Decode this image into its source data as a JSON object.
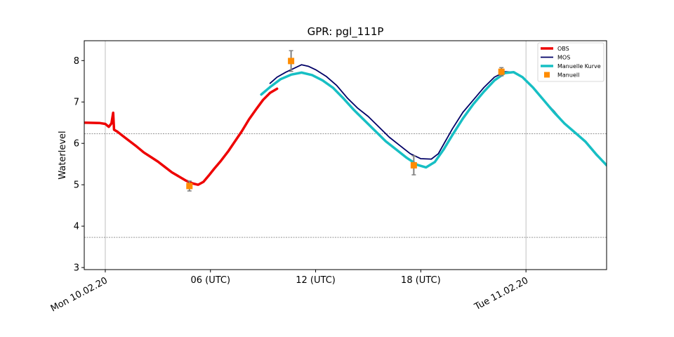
{
  "chart_data": {
    "type": "line",
    "title": "GPR: pgl_111P",
    "xlabel": "",
    "ylabel": "Waterlevel",
    "x_unit": "hours since 10.02.20 00:00 UTC",
    "xlim": [
      -1.2,
      28.6
    ],
    "ylim": [
      2.95,
      8.48
    ],
    "y_ticks": [
      3,
      4,
      5,
      6,
      7,
      8
    ],
    "x_ticks": [
      {
        "x": 0,
        "label": "Mon 10.02.20",
        "rotated": true,
        "gridline": true
      },
      {
        "x": 6,
        "label": "06 (UTC)",
        "rotated": false,
        "gridline": false
      },
      {
        "x": 12,
        "label": "12 (UTC)",
        "rotated": false,
        "gridline": false
      },
      {
        "x": 18,
        "label": "18 (UTC)",
        "rotated": false,
        "gridline": false
      },
      {
        "x": 24,
        "label": "Tue 11.02.20",
        "rotated": true,
        "gridline": true
      }
    ],
    "horizontal_reference_lines": [
      6.23,
      3.73
    ],
    "legend_position": "upper right",
    "colors": {
      "obs": "#ee0000",
      "mos": "#000066",
      "manual_curve": "#17bfc4",
      "manual_points": "#ff8c00",
      "error_bars": "#808080",
      "grid": "#b0b0b0"
    },
    "series": [
      {
        "name": "OBS",
        "style": "line-thick",
        "color": "#ee0000",
        "points": [
          [
            -1.2,
            6.5
          ],
          [
            -0.3,
            6.49
          ],
          [
            0.0,
            6.47
          ],
          [
            0.2,
            6.4
          ],
          [
            0.35,
            6.48
          ],
          [
            0.45,
            6.74
          ],
          [
            0.5,
            6.33
          ],
          [
            0.7,
            6.28
          ],
          [
            1.0,
            6.18
          ],
          [
            1.4,
            6.05
          ],
          [
            1.8,
            5.92
          ],
          [
            2.2,
            5.78
          ],
          [
            2.6,
            5.67
          ],
          [
            3.0,
            5.56
          ],
          [
            3.4,
            5.43
          ],
          [
            3.8,
            5.3
          ],
          [
            4.2,
            5.2
          ],
          [
            4.6,
            5.1
          ],
          [
            5.0,
            5.03
          ],
          [
            5.3,
            5.0
          ],
          [
            5.6,
            5.07
          ],
          [
            5.9,
            5.22
          ],
          [
            6.2,
            5.38
          ],
          [
            6.6,
            5.58
          ],
          [
            7.0,
            5.8
          ],
          [
            7.4,
            6.05
          ],
          [
            7.8,
            6.3
          ],
          [
            8.2,
            6.58
          ],
          [
            8.6,
            6.82
          ],
          [
            9.0,
            7.05
          ],
          [
            9.4,
            7.22
          ],
          [
            9.8,
            7.32
          ]
        ]
      },
      {
        "name": "MOS",
        "style": "line",
        "color": "#000066",
        "points": [
          [
            9.4,
            7.45
          ],
          [
            9.8,
            7.6
          ],
          [
            10.3,
            7.72
          ],
          [
            10.8,
            7.82
          ],
          [
            11.2,
            7.9
          ],
          [
            11.6,
            7.86
          ],
          [
            12.0,
            7.78
          ],
          [
            12.6,
            7.62
          ],
          [
            13.2,
            7.4
          ],
          [
            13.8,
            7.1
          ],
          [
            14.4,
            6.85
          ],
          [
            15.0,
            6.65
          ],
          [
            15.6,
            6.4
          ],
          [
            16.2,
            6.15
          ],
          [
            16.8,
            5.95
          ],
          [
            17.4,
            5.75
          ],
          [
            18.0,
            5.63
          ],
          [
            18.6,
            5.62
          ],
          [
            19.0,
            5.75
          ],
          [
            19.4,
            6.05
          ],
          [
            19.8,
            6.35
          ],
          [
            20.4,
            6.75
          ],
          [
            21.0,
            7.05
          ],
          [
            21.6,
            7.35
          ],
          [
            22.2,
            7.6
          ],
          [
            22.8,
            7.73
          ],
          [
            23.3,
            7.72
          ],
          [
            23.8,
            7.6
          ],
          [
            24.4,
            7.35
          ],
          [
            25.0,
            7.05
          ],
          [
            25.6,
            6.78
          ],
          [
            26.2,
            6.48
          ],
          [
            26.8,
            6.25
          ],
          [
            27.4,
            6.02
          ],
          [
            28.0,
            5.72
          ],
          [
            28.6,
            5.48
          ]
        ]
      },
      {
        "name": "Manuelle Kurve",
        "style": "line-thick",
        "color": "#17bfc4",
        "points": [
          [
            8.9,
            7.18
          ],
          [
            9.4,
            7.36
          ],
          [
            10.0,
            7.55
          ],
          [
            10.6,
            7.66
          ],
          [
            11.2,
            7.71
          ],
          [
            11.8,
            7.65
          ],
          [
            12.4,
            7.52
          ],
          [
            13.0,
            7.34
          ],
          [
            13.6,
            7.08
          ],
          [
            14.2,
            6.8
          ],
          [
            14.8,
            6.55
          ],
          [
            15.4,
            6.3
          ],
          [
            16.0,
            6.05
          ],
          [
            16.6,
            5.85
          ],
          [
            17.2,
            5.65
          ],
          [
            17.8,
            5.48
          ],
          [
            18.3,
            5.42
          ],
          [
            18.8,
            5.55
          ],
          [
            19.3,
            5.85
          ],
          [
            19.8,
            6.2
          ],
          [
            20.4,
            6.6
          ],
          [
            21.0,
            6.95
          ],
          [
            21.6,
            7.25
          ],
          [
            22.2,
            7.52
          ],
          [
            22.8,
            7.7
          ],
          [
            23.3,
            7.72
          ],
          [
            23.8,
            7.6
          ],
          [
            24.4,
            7.35
          ],
          [
            25.0,
            7.05
          ],
          [
            25.6,
            6.75
          ],
          [
            26.2,
            6.48
          ],
          [
            26.8,
            6.26
          ],
          [
            27.4,
            6.04
          ],
          [
            28.0,
            5.74
          ],
          [
            28.6,
            5.47
          ]
        ]
      }
    ],
    "manual_points": {
      "name": "Manuell",
      "color": "#ff8c00",
      "points": [
        {
          "x": 4.8,
          "y": 4.97,
          "err": 0.12
        },
        {
          "x": 10.6,
          "y": 7.99,
          "err": 0.25
        },
        {
          "x": 17.6,
          "y": 5.47,
          "err": 0.23
        },
        {
          "x": 22.6,
          "y": 7.73,
          "err": 0.1
        }
      ]
    },
    "legend": [
      {
        "label": "OBS",
        "kind": "line",
        "color": "#ee0000",
        "thick": true
      },
      {
        "label": "MOS",
        "kind": "line",
        "color": "#000066",
        "thick": false
      },
      {
        "label": "Manuelle Kurve",
        "kind": "line",
        "color": "#17bfc4",
        "thick": true
      },
      {
        "label": "Manuell",
        "kind": "marker",
        "color": "#ff8c00",
        "thick": false
      }
    ]
  }
}
